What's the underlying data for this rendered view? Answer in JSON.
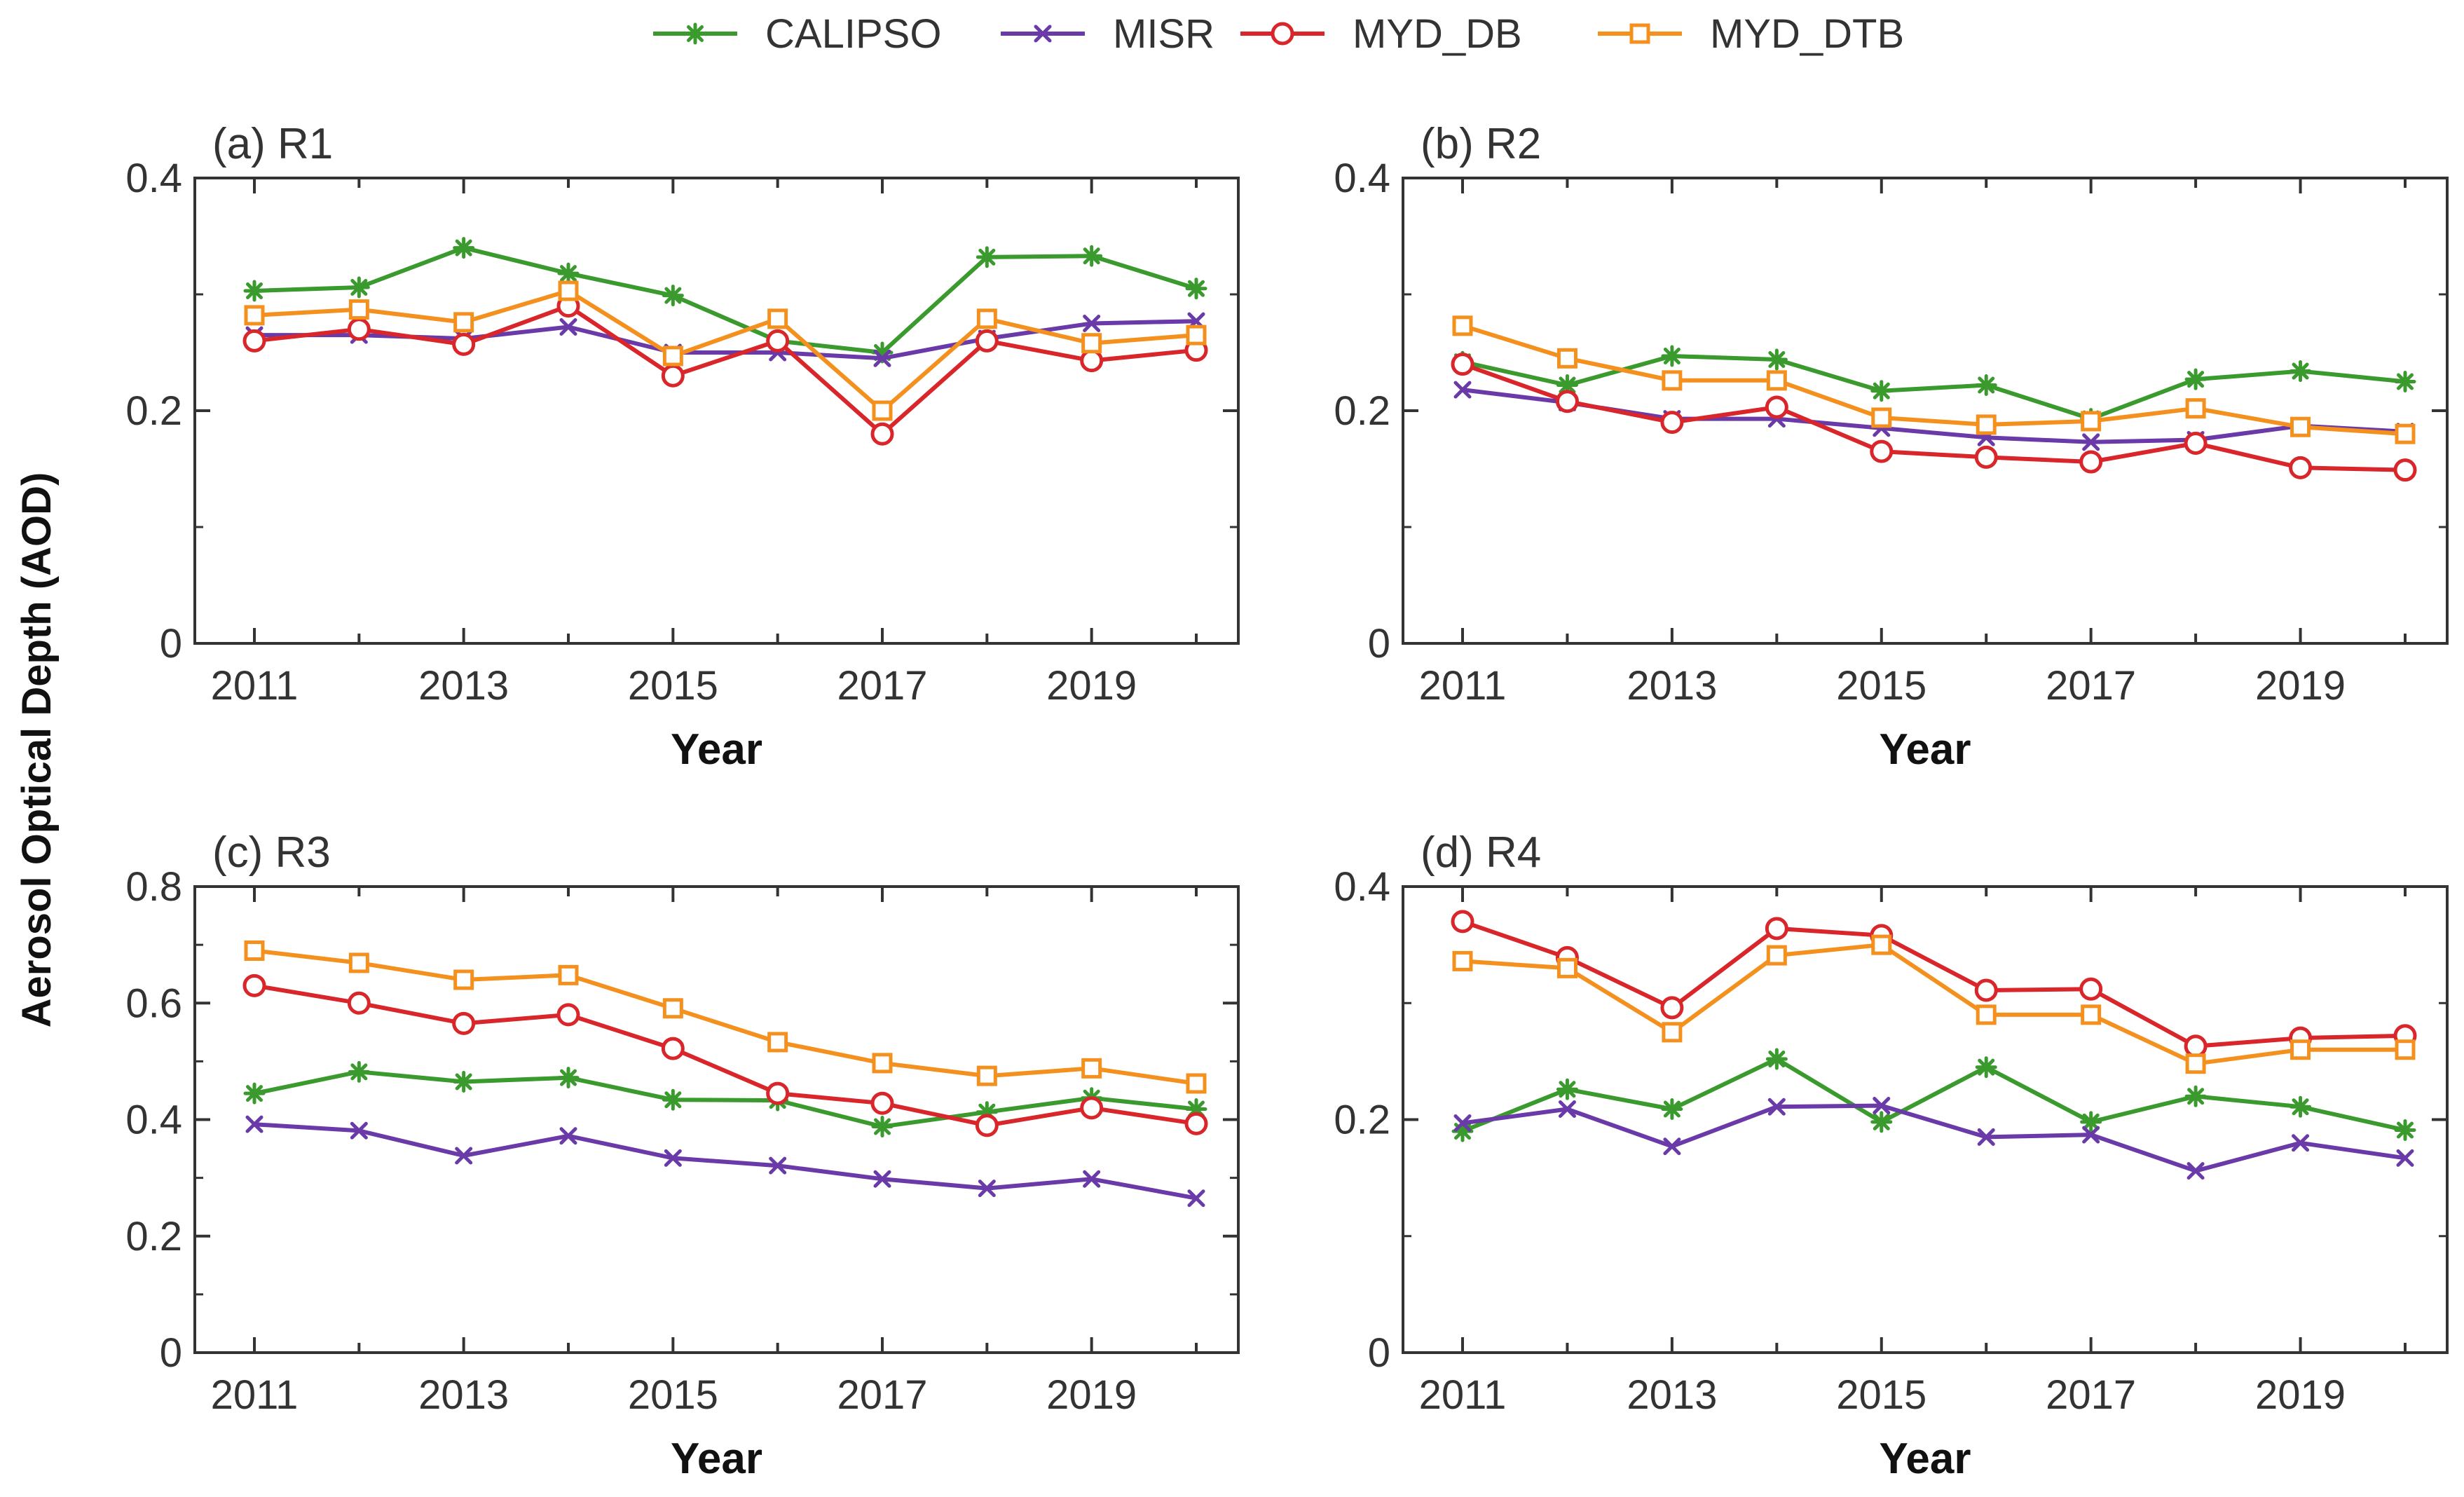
{
  "figure": {
    "y_axis_label": "Aerosol Optical Depth (AOD)"
  },
  "colors": {
    "CALIPSO": "#3a9a2e",
    "MISR": "#6a3aa8",
    "MYD_DB": "#d9262a",
    "MYD_DTB": "#f4901e",
    "axis": "#333333"
  },
  "legend": [
    {
      "name": "CALIPSO",
      "marker": "asterisk"
    },
    {
      "name": "MISR",
      "marker": "x"
    },
    {
      "name": "MYD_DB",
      "marker": "circle"
    },
    {
      "name": "MYD_DTB",
      "marker": "square"
    }
  ],
  "chart_data": [
    {
      "type": "line",
      "title": "(a) R1",
      "xlabel": "Year",
      "ylabel": "Aerosol Optical Depth (AOD)",
      "x": [
        2011,
        2012,
        2013,
        2014,
        2015,
        2016,
        2017,
        2018,
        2019,
        2020
      ],
      "xticks": [
        "2011",
        "2013",
        "2015",
        "2017",
        "2019"
      ],
      "ylim": [
        0,
        0.4
      ],
      "yticks": [
        "0",
        "0.2",
        "0.4"
      ],
      "series": [
        {
          "name": "CALIPSO",
          "values": [
            0.303,
            0.306,
            0.34,
            0.318,
            0.299,
            0.26,
            0.25,
            0.332,
            0.333,
            0.305
          ]
        },
        {
          "name": "MISR",
          "values": [
            0.265,
            0.265,
            0.262,
            0.272,
            0.25,
            0.25,
            0.245,
            0.262,
            0.275,
            0.277
          ]
        },
        {
          "name": "MYD_DB",
          "values": [
            0.26,
            0.27,
            0.257,
            0.29,
            0.23,
            0.26,
            0.18,
            0.26,
            0.243,
            0.252
          ]
        },
        {
          "name": "MYD_DTB",
          "values": [
            0.282,
            0.287,
            0.276,
            0.303,
            0.247,
            0.279,
            0.2,
            0.279,
            0.258,
            0.265
          ]
        }
      ]
    },
    {
      "type": "line",
      "title": "(b) R2",
      "xlabel": "Year",
      "ylabel": "Aerosol Optical Depth (AOD)",
      "x": [
        2011,
        2012,
        2013,
        2014,
        2015,
        2016,
        2017,
        2018,
        2019,
        2020
      ],
      "xticks": [
        "2011",
        "2013",
        "2015",
        "2017",
        "2019"
      ],
      "ylim": [
        0,
        0.4
      ],
      "yticks": [
        "0",
        "0.2",
        "0.4"
      ],
      "series": [
        {
          "name": "CALIPSO",
          "values": [
            0.242,
            0.222,
            0.247,
            0.244,
            0.217,
            0.222,
            0.193,
            0.227,
            0.234,
            0.225
          ]
        },
        {
          "name": "MISR",
          "values": [
            0.218,
            0.207,
            0.193,
            0.193,
            0.185,
            0.177,
            0.173,
            0.175,
            0.187,
            0.182
          ]
        },
        {
          "name": "MYD_DB",
          "values": [
            0.24,
            0.208,
            0.19,
            0.203,
            0.165,
            0.16,
            0.156,
            0.172,
            0.151,
            0.149
          ]
        },
        {
          "name": "MYD_DTB",
          "values": [
            0.273,
            0.245,
            0.226,
            0.226,
            0.194,
            0.188,
            0.191,
            0.202,
            0.186,
            0.18
          ]
        }
      ]
    },
    {
      "type": "line",
      "title": "(c) R3",
      "xlabel": "Year",
      "ylabel": "Aerosol Optical Depth (AOD)",
      "x": [
        2011,
        2012,
        2013,
        2014,
        2015,
        2016,
        2017,
        2018,
        2019,
        2020
      ],
      "xticks": [
        "2011",
        "2013",
        "2015",
        "2017",
        "2019"
      ],
      "ylim": [
        0,
        0.8
      ],
      "yticks": [
        "0",
        "0.2",
        "0.4",
        "0.6",
        "0.8"
      ],
      "series": [
        {
          "name": "CALIPSO",
          "values": [
            0.445,
            0.482,
            0.465,
            0.472,
            0.434,
            0.433,
            0.388,
            0.413,
            0.437,
            0.418
          ]
        },
        {
          "name": "MISR",
          "values": [
            0.392,
            0.381,
            0.338,
            0.372,
            0.334,
            0.321,
            0.298,
            0.282,
            0.298,
            0.265
          ]
        },
        {
          "name": "MYD_DB",
          "values": [
            0.63,
            0.6,
            0.565,
            0.58,
            0.522,
            0.445,
            0.428,
            0.39,
            0.42,
            0.393
          ]
        },
        {
          "name": "MYD_DTB",
          "values": [
            0.69,
            0.669,
            0.64,
            0.648,
            0.591,
            0.533,
            0.497,
            0.475,
            0.488,
            0.462
          ]
        }
      ]
    },
    {
      "type": "line",
      "title": "(d) R4",
      "xlabel": "Year",
      "ylabel": "Aerosol Optical Depth (AOD)",
      "x": [
        2011,
        2012,
        2013,
        2014,
        2015,
        2016,
        2017,
        2018,
        2019,
        2020
      ],
      "xticks": [
        "2011",
        "2013",
        "2015",
        "2017",
        "2019"
      ],
      "ylim": [
        0,
        0.4
      ],
      "yticks": [
        "0",
        "0.2",
        "0.4"
      ],
      "series": [
        {
          "name": "CALIPSO",
          "values": [
            0.19,
            0.226,
            0.209,
            0.252,
            0.198,
            0.245,
            0.198,
            0.22,
            0.211,
            0.191
          ]
        },
        {
          "name": "MISR",
          "values": [
            0.197,
            0.209,
            0.177,
            0.211,
            0.212,
            0.185,
            0.187,
            0.156,
            0.18,
            0.167
          ]
        },
        {
          "name": "MYD_DB",
          "values": [
            0.37,
            0.339,
            0.296,
            0.364,
            0.358,
            0.311,
            0.312,
            0.263,
            0.27,
            0.272
          ]
        },
        {
          "name": "MYD_DTB",
          "values": [
            0.336,
            0.33,
            0.275,
            0.341,
            0.35,
            0.29,
            0.29,
            0.248,
            0.26,
            0.26
          ]
        }
      ]
    }
  ]
}
